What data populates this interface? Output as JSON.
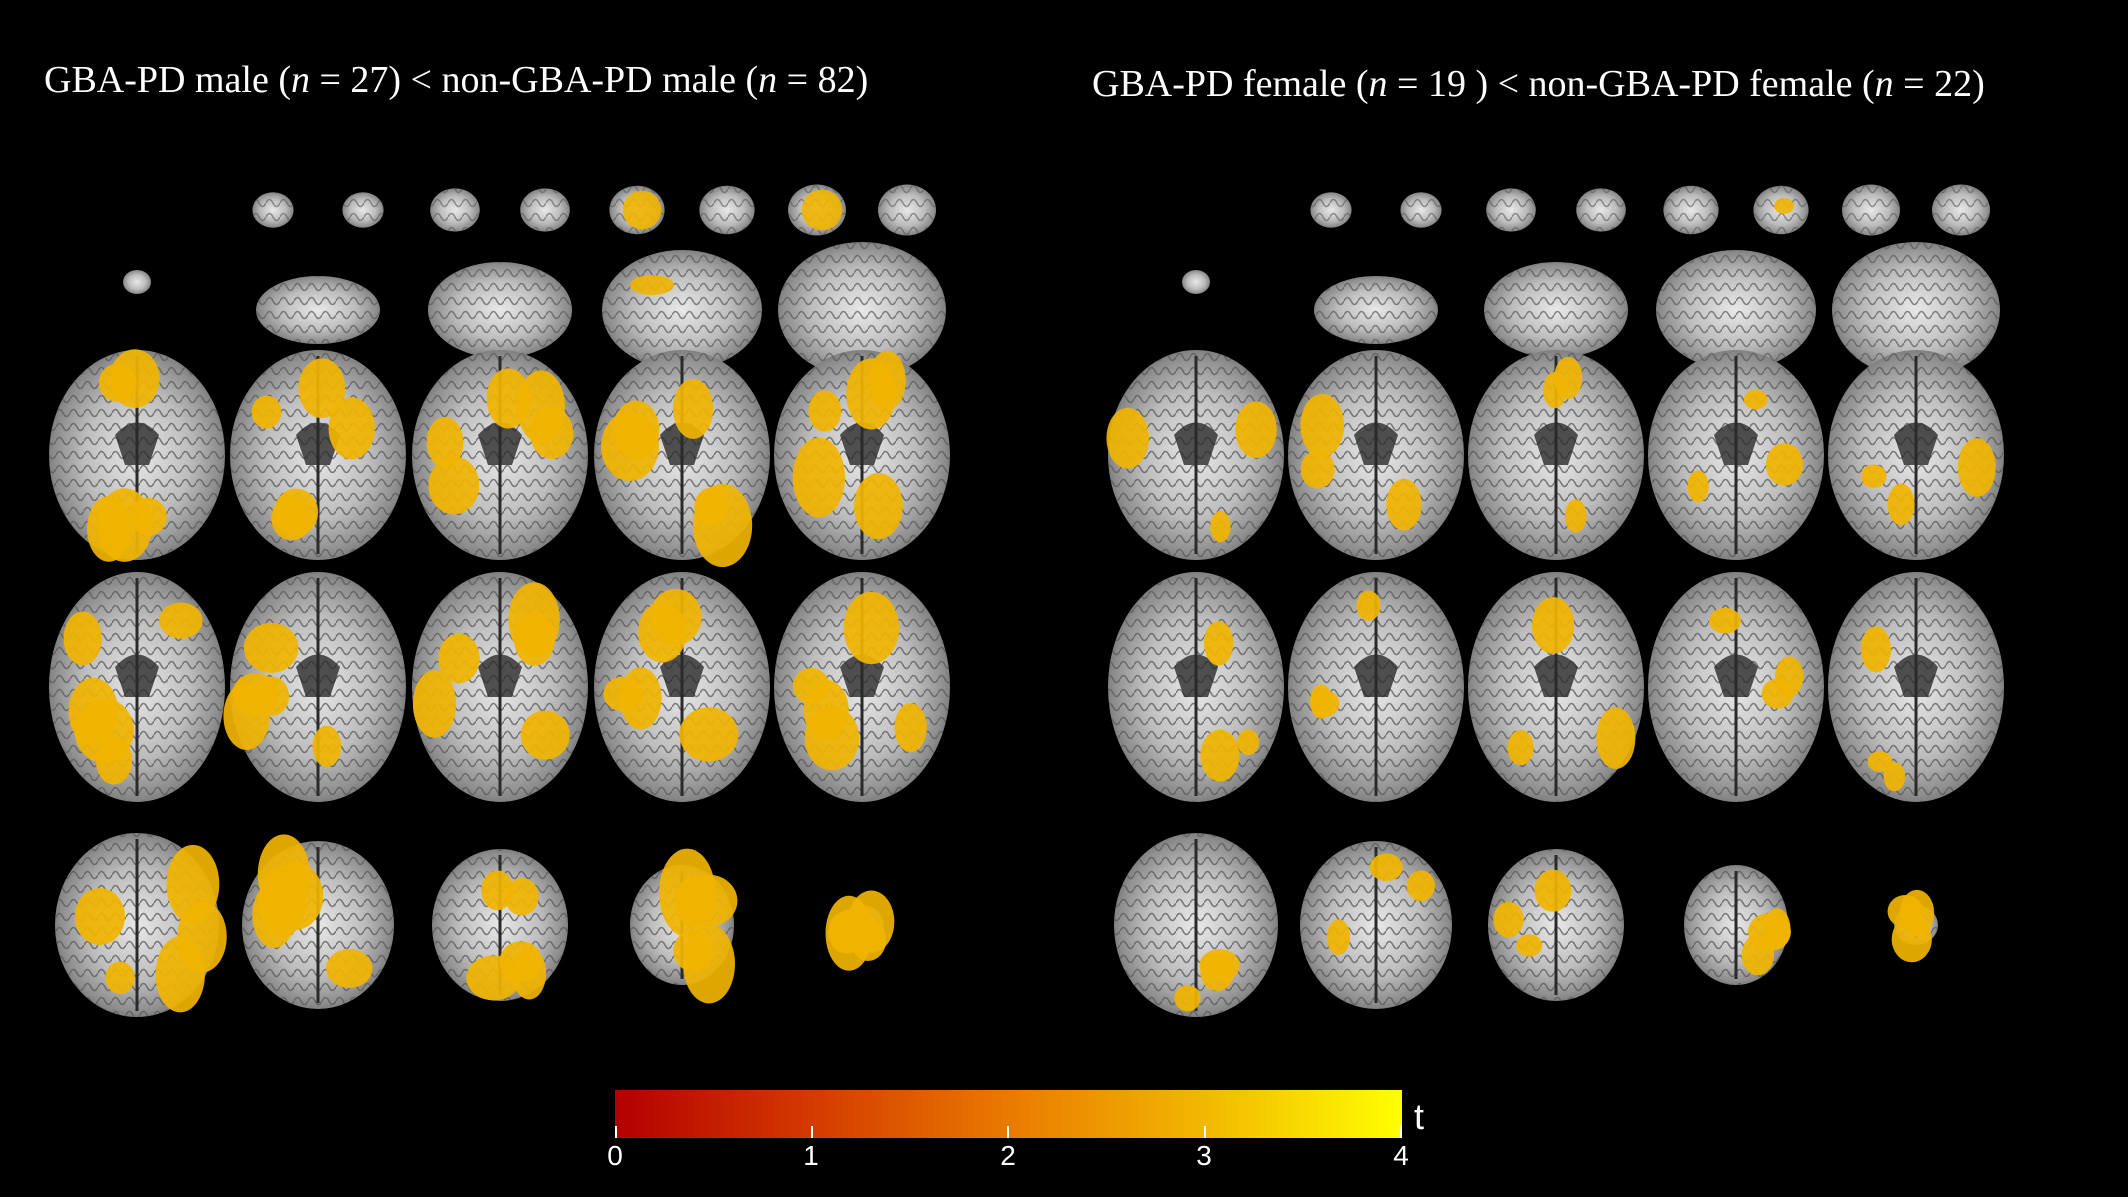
{
  "panels": [
    {
      "group_a": "GBA-PD male",
      "n_a": "27",
      "group_b": "non-GBA-PD male",
      "n_b": "82"
    },
    {
      "group_a": "GBA-PD female",
      "n_a": "19 ",
      "group_b": "non-GBA-PD female",
      "n_b": "22"
    }
  ],
  "n_symbol": "n",
  "colorbar": {
    "label": "t",
    "ticks": [
      "0",
      "1",
      "2",
      "3",
      "4"
    ],
    "range": [
      0,
      4
    ],
    "colors": [
      "#b30000",
      "#d43a00",
      "#e97a00",
      "#f2b800",
      "#ffff00"
    ]
  },
  "slices_per_panel": 25,
  "overlay_color": "#f0b400"
}
